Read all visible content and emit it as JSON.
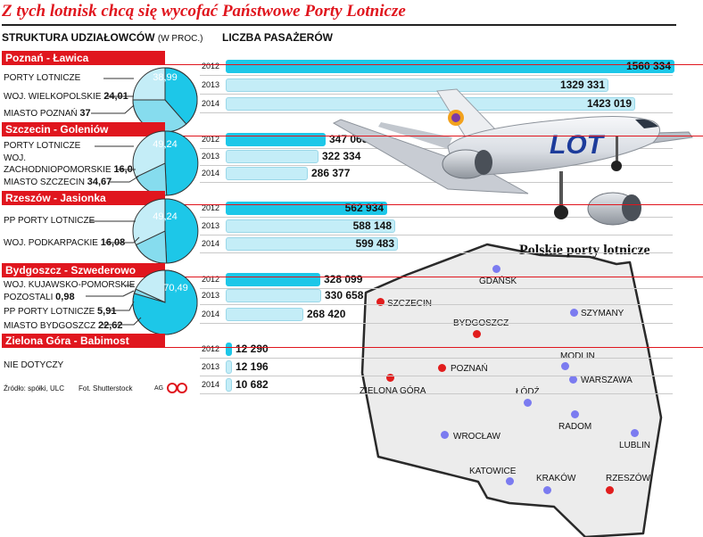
{
  "title": "Z tych lotnisk chcą się wycofać Państwowe Porty Lotnicze",
  "header_left": "STRUKTURA UDZIAŁOWCÓW",
  "header_left_unit": "(W PROC.)",
  "header_right": "LICZBA PASAŻERÓW",
  "years": [
    "2012",
    "2013",
    "2014"
  ],
  "colors": {
    "red": "#e0161e",
    "dark_cyan": "#1dc7e8",
    "light_cyan": "#c4edf7",
    "red_dot": "#e11d1d",
    "blue_dot": "#7b7bf0"
  },
  "airports": [
    {
      "name": "Poznań - Ławica",
      "pie_value": "38,99",
      "shareholders": [
        {
          "label": "PORTY LOTNICZE",
          "value": ""
        },
        {
          "label": "WOJ. WIELKOPOLSKIE",
          "value": "24,01"
        },
        {
          "label": "MIASTO POZNAŃ",
          "value": "37"
        }
      ],
      "passengers": [
        {
          "year": "2012",
          "value": "1560 334",
          "num": 1560334
        },
        {
          "year": "2013",
          "value": "1329 331",
          "num": 1329331
        },
        {
          "year": "2014",
          "value": "1423 019",
          "num": 1423019
        }
      ]
    },
    {
      "name": "Szczecin - Goleniów",
      "pie_value": "49,24",
      "shareholders": [
        {
          "label": "PORTY LOTNICZE",
          "value": ""
        },
        {
          "label": "WOJ.",
          "value": ""
        },
        {
          "label": "ZACHODNIOPOMORSKIE",
          "value": "16,08"
        },
        {
          "label": "MIASTO SZCZECIN",
          "value": "34,67"
        }
      ],
      "passengers": [
        {
          "year": "2012",
          "value": "347 063",
          "num": 347063
        },
        {
          "year": "2013",
          "value": "322 334",
          "num": 322334
        },
        {
          "year": "2014",
          "value": "286 377",
          "num": 286377
        }
      ]
    },
    {
      "name": "Rzeszów - Jasionka",
      "pie_value": "49,24",
      "shareholders": [
        {
          "label": "PP PORTY LOTNICZE",
          "value": ""
        },
        {
          "label": "WOJ. PODKARPACKIE",
          "value": "16,08"
        }
      ],
      "passengers": [
        {
          "year": "2012",
          "value": "562 934",
          "num": 562934
        },
        {
          "year": "2013",
          "value": "588 148",
          "num": 588148
        },
        {
          "year": "2014",
          "value": "599 483",
          "num": 599483
        }
      ]
    },
    {
      "name": "Bydgoszcz - Szwederowo",
      "pie_value": "70,49",
      "shareholders": [
        {
          "label": "WOJ. KUJAWSKO-POMORSKIE",
          "value": ""
        },
        {
          "label": "POZOSTALI",
          "value": "0,98"
        },
        {
          "label": "PP PORTY LOTNICZE",
          "value": "5,91"
        },
        {
          "label": "MIASTO BYDGOSZCZ",
          "value": "22,62"
        }
      ],
      "passengers": [
        {
          "year": "2012",
          "value": "328 099",
          "num": 328099
        },
        {
          "year": "2013",
          "value": "330 658",
          "num": 330658
        },
        {
          "year": "2014",
          "value": "268 420",
          "num": 268420
        }
      ]
    },
    {
      "name": "Zielona Góra - Babimost",
      "note": "NIE DOTYCZY",
      "passengers": [
        {
          "year": "2012",
          "value": "12 290",
          "num": 12290
        },
        {
          "year": "2013",
          "value": "12 196",
          "num": 12196
        },
        {
          "year": "2014",
          "value": "10 682",
          "num": 10682
        }
      ]
    }
  ],
  "footer": {
    "source": "Źródło: spółki, ULC",
    "photo": "Fot. Shutterstock",
    "initials": "AG"
  },
  "plane_livery": "LOT",
  "map": {
    "title": "Polskie porty lotnicze",
    "cities": [
      {
        "name": "GDAŃSK",
        "color": "blue"
      },
      {
        "name": "SZCZECIN",
        "color": "red"
      },
      {
        "name": "SZYMANY",
        "color": "blue"
      },
      {
        "name": "BYDGOSZCZ",
        "color": "red"
      },
      {
        "name": "MODLIN",
        "color": "blue"
      },
      {
        "name": "POZNAŃ",
        "color": "red"
      },
      {
        "name": "WARSZAWA",
        "color": "blue"
      },
      {
        "name": "ZIELONA GÓRA",
        "color": "red"
      },
      {
        "name": "ŁÓDŹ",
        "color": "blue"
      },
      {
        "name": "RADOM",
        "color": "blue"
      },
      {
        "name": "WROCŁAW",
        "color": "blue"
      },
      {
        "name": "LUBLIN",
        "color": "blue"
      },
      {
        "name": "KATOWICE",
        "color": "blue"
      },
      {
        "name": "KRAKÓW",
        "color": "blue"
      },
      {
        "name": "RZESZÓW",
        "color": "red"
      }
    ]
  }
}
